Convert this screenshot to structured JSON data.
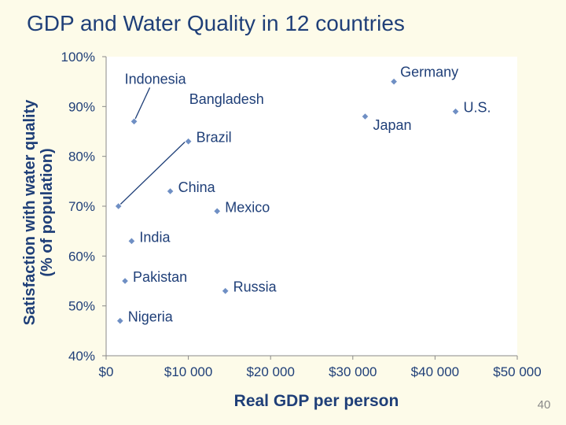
{
  "page": {
    "title": "GDP and Water Quality in 12 countries",
    "page_number": "40"
  },
  "chart_data": {
    "type": "scatter",
    "title": "GDP and Water Quality in 12 countries",
    "xlabel": "Real GDP per person",
    "ylabel_line1": "Satisfaction with water quality",
    "ylabel_line2": "(% of population)",
    "xlim": [
      0,
      50000
    ],
    "ylim": [
      40,
      100
    ],
    "xticks": [
      0,
      10000,
      20000,
      30000,
      40000,
      50000
    ],
    "xtick_labels": [
      "$0",
      "$10 000",
      "$20 000",
      "$30 000",
      "$40 000",
      "$50 000"
    ],
    "yticks": [
      40,
      50,
      60,
      70,
      80,
      90,
      100
    ],
    "ytick_labels": [
      "40%",
      "50%",
      "60%",
      "70%",
      "80%",
      "90%",
      "100%"
    ],
    "colors": {
      "marker": "#6f8fc4",
      "axis": "#1f3f78",
      "text": "#1f3f78",
      "plot_bg": "#ffffff"
    },
    "points": [
      {
        "label": "Indonesia",
        "x": 3400,
        "y": 87,
        "label_pos": "above-left",
        "leader": true
      },
      {
        "label": "Bangladesh",
        "x": 1500,
        "y": 70,
        "label_pos": "above-right",
        "leader": true
      },
      {
        "label": "Brazil",
        "x": 10000,
        "y": 83,
        "label_pos": "right"
      },
      {
        "label": "China",
        "x": 7800,
        "y": 73,
        "label_pos": "right"
      },
      {
        "label": "Mexico",
        "x": 13500,
        "y": 69,
        "label_pos": "right"
      },
      {
        "label": "India",
        "x": 3100,
        "y": 63,
        "label_pos": "right"
      },
      {
        "label": "Pakistan",
        "x": 2300,
        "y": 55,
        "label_pos": "right"
      },
      {
        "label": "Nigeria",
        "x": 1700,
        "y": 47,
        "label_pos": "right"
      },
      {
        "label": "Russia",
        "x": 14500,
        "y": 53,
        "label_pos": "right"
      },
      {
        "label": "Japan",
        "x": 31500,
        "y": 88,
        "label_pos": "below-right"
      },
      {
        "label": "Germany",
        "x": 35000,
        "y": 95,
        "label_pos": "above-right"
      },
      {
        "label": "U.S.",
        "x": 42500,
        "y": 89,
        "label_pos": "right"
      }
    ]
  }
}
